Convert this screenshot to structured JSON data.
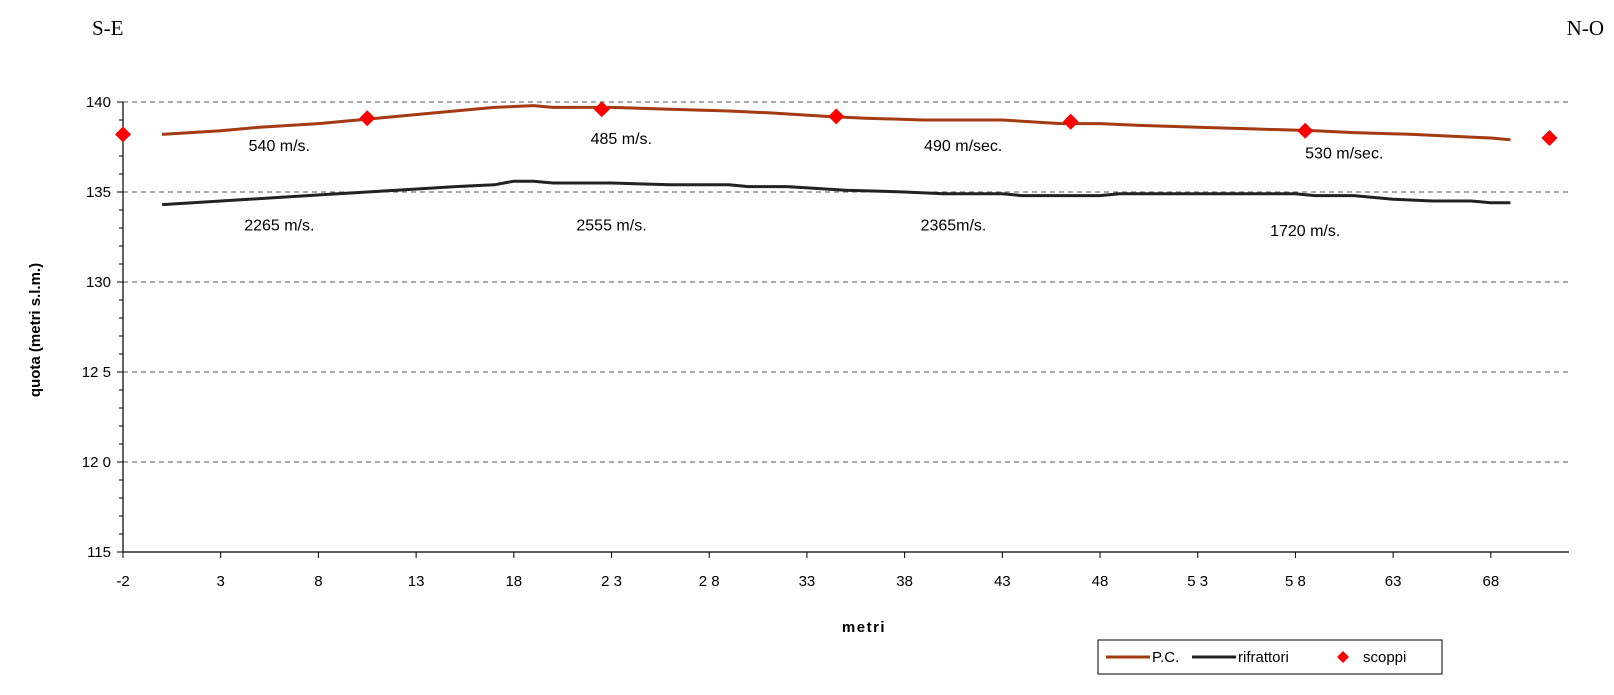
{
  "header": {
    "left_label": "S-E",
    "right_label": "N-O"
  },
  "chart_data": {
    "type": "line",
    "title": "",
    "xlabel": "metri",
    "ylabel": "quota (metri  s.l.m.)",
    "xlim": [
      -2,
      72
    ],
    "ylim": [
      115,
      140
    ],
    "x_ticks": [
      -2,
      3,
      8,
      13,
      18,
      23,
      28,
      33,
      38,
      43,
      48,
      53,
      58,
      63,
      68
    ],
    "x_tick_labels": [
      "-2",
      "3",
      "8",
      "13",
      "18",
      "2 3",
      "2 8",
      "33",
      "38",
      "43",
      "48",
      "5 3",
      "5 8",
      "63",
      "68"
    ],
    "y_ticks": [
      115,
      120,
      125,
      130,
      135,
      140
    ],
    "y_tick_labels": [
      "115",
      "12 0",
      "12 5",
      "130",
      "135",
      "140"
    ],
    "grid": "horizontal dashed",
    "legend_position": "bottom-right",
    "series": [
      {
        "name": "P.C.",
        "kind": "line",
        "color": "#a33a12",
        "points": [
          [
            0,
            138.2
          ],
          [
            3,
            138.4
          ],
          [
            5,
            138.6
          ],
          [
            8,
            138.8
          ],
          [
            11,
            139.1
          ],
          [
            14,
            139.4
          ],
          [
            17,
            139.7
          ],
          [
            19,
            139.8
          ],
          [
            20,
            139.7
          ],
          [
            23,
            139.7
          ],
          [
            26,
            139.6
          ],
          [
            29,
            139.5
          ],
          [
            31,
            139.4
          ],
          [
            34,
            139.2
          ],
          [
            36,
            139.1
          ],
          [
            39,
            139.0
          ],
          [
            43,
            139.0
          ],
          [
            46,
            138.8
          ],
          [
            48,
            138.8
          ],
          [
            50,
            138.7
          ],
          [
            53,
            138.6
          ],
          [
            56,
            138.5
          ],
          [
            59,
            138.4
          ],
          [
            61,
            138.3
          ],
          [
            64,
            138.2
          ],
          [
            66,
            138.1
          ],
          [
            68,
            138.0
          ],
          [
            69,
            137.9
          ]
        ]
      },
      {
        "name": "rifrattori",
        "kind": "line",
        "color": "#222222",
        "points": [
          [
            0,
            134.3
          ],
          [
            3,
            134.5
          ],
          [
            6,
            134.7
          ],
          [
            9,
            134.9
          ],
          [
            12,
            135.1
          ],
          [
            15,
            135.3
          ],
          [
            17,
            135.4
          ],
          [
            18,
            135.6
          ],
          [
            19,
            135.6
          ],
          [
            20,
            135.5
          ],
          [
            23,
            135.5
          ],
          [
            26,
            135.4
          ],
          [
            29,
            135.4
          ],
          [
            30,
            135.3
          ],
          [
            32,
            135.3
          ],
          [
            35,
            135.1
          ],
          [
            38,
            135.0
          ],
          [
            40,
            134.9
          ],
          [
            43,
            134.9
          ],
          [
            44,
            134.8
          ],
          [
            48,
            134.8
          ],
          [
            49,
            134.9
          ],
          [
            58,
            134.9
          ],
          [
            59,
            134.8
          ],
          [
            61,
            134.8
          ],
          [
            63,
            134.6
          ],
          [
            65,
            134.5
          ],
          [
            67,
            134.5
          ],
          [
            68,
            134.4
          ],
          [
            69,
            134.4
          ]
        ]
      },
      {
        "name": "scoppi",
        "kind": "scatter",
        "color": "#ff0000",
        "points": [
          [
            -2,
            138.2
          ],
          [
            10.5,
            139.1
          ],
          [
            22.5,
            139.6
          ],
          [
            34.5,
            139.2
          ],
          [
            46.5,
            138.9
          ],
          [
            58.5,
            138.4
          ],
          [
            71,
            138.0
          ]
        ]
      }
    ],
    "annotations": [
      {
        "text": "540 m/s.",
        "x": 6,
        "y": 137.6
      },
      {
        "text": "485 m/s.",
        "x": 23.5,
        "y": 138.0
      },
      {
        "text": "490 m/sec.",
        "x": 41,
        "y": 137.6
      },
      {
        "text": "530 m/sec.",
        "x": 60.5,
        "y": 137.2
      },
      {
        "text": "2265 m/s.",
        "x": 6,
        "y": 133.2
      },
      {
        "text": "2555 m/s.",
        "x": 23,
        "y": 133.2
      },
      {
        "text": "2365m/s.",
        "x": 40.5,
        "y": 133.2
      },
      {
        "text": "1720 m/s.",
        "x": 58.5,
        "y": 132.9
      }
    ]
  }
}
